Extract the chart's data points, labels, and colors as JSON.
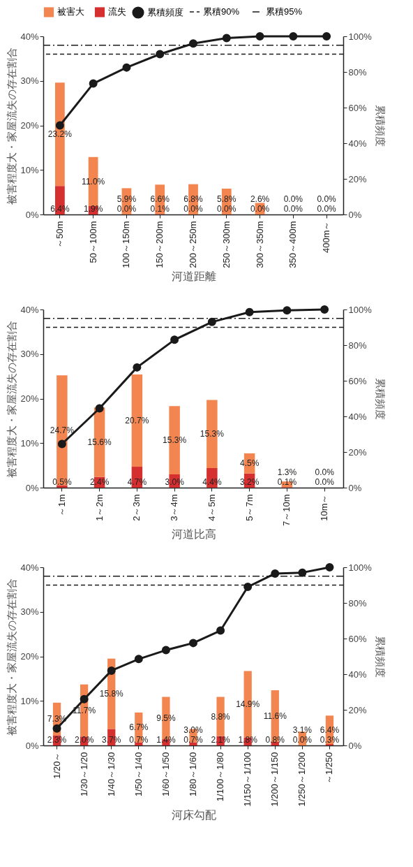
{
  "chart_data": [
    {
      "type": "bar",
      "stacked": true,
      "legend": "top",
      "marker": "circle",
      "xlabel": "河道距離",
      "ylabel": "被害程度大・家屋流失の存在割合",
      "y2label": "累積頻度",
      "categories": [
        "～50m",
        "50～100m",
        "100～150m",
        "150～200m",
        "200～250m",
        "250～300m",
        "300～350m",
        "350～400m",
        "400m～"
      ],
      "series": [
        {
          "name": "流失",
          "type": "bar",
          "color": "#d62f2f",
          "values": [
            6.4,
            1.9,
            0.0,
            0.1,
            0.0,
            0.0,
            0.0,
            0.0,
            0.0
          ],
          "value_labels": [
            "6.4%",
            "1.9%",
            "0.0%",
            "0.1%",
            "0.0%",
            "0.0%",
            "0.0%",
            "0.0%",
            "0.0%"
          ]
        },
        {
          "name": "被害大",
          "type": "bar",
          "color": "#f28550",
          "values": [
            23.2,
            11.0,
            5.9,
            6.6,
            6.8,
            5.8,
            2.6,
            0.0,
            0.0
          ],
          "value_labels": [
            "23.2%",
            "11.0%",
            "5.9%",
            "6.6%",
            "6.8%",
            "5.8%",
            "2.6%",
            "0.0%",
            "0.0%"
          ]
        },
        {
          "name": "累積頻度",
          "type": "line",
          "axis": "y2",
          "color": "#1a1a1a",
          "line_style": "solid",
          "values": [
            50,
            73.5,
            82.5,
            90,
            96,
            99,
            100,
            100,
            100
          ]
        }
      ],
      "ylim": [
        0,
        40
      ],
      "yticks": [
        {
          "value": 0,
          "label": "0%"
        },
        {
          "value": 10,
          "label": "10%"
        },
        {
          "value": 20,
          "label": "20%"
        },
        {
          "value": 30,
          "label": "30%"
        },
        {
          "value": 40,
          "label": "40%"
        }
      ],
      "y2lim": [
        0,
        100
      ],
      "y2ticks": [
        {
          "value": 0,
          "label": "0%"
        },
        {
          "value": 20,
          "label": "20%"
        },
        {
          "value": 40,
          "label": "40%"
        },
        {
          "value": 60,
          "label": "60%"
        },
        {
          "value": 80,
          "label": "80%"
        },
        {
          "value": 100,
          "label": "100%"
        }
      ],
      "ref_lines": [
        {
          "axis": "y2",
          "value": 90,
          "label": "累積90%",
          "line_style": "dashed",
          "color": "#1a1a1a"
        },
        {
          "axis": "y2",
          "value": 95,
          "label": "累積95%",
          "line_style": "dashdot",
          "color": "#1a1a1a"
        }
      ]
    },
    {
      "type": "bar",
      "stacked": true,
      "marker": "circle",
      "xlabel": "河道比高",
      "ylabel": "被害程度大・家屋流失の存在割合",
      "y2label": "累積頻度",
      "categories": [
        "～1m",
        "1～2m",
        "2～3m",
        "3～4m",
        "4～5m",
        "5～7m",
        "7～10m",
        "10m～"
      ],
      "series": [
        {
          "type": "bar",
          "color": "#d62f2f",
          "values": [
            0.5,
            2.4,
            4.7,
            3.0,
            4.4,
            3.2,
            0.1,
            0.0
          ],
          "value_labels": [
            "0.5%",
            "2.4%",
            "4.7%",
            "3.0%",
            "4.4%",
            "3.2%",
            "0.1%",
            "0.0%"
          ]
        },
        {
          "type": "bar",
          "color": "#f28550",
          "values": [
            24.7,
            15.6,
            20.7,
            15.3,
            15.3,
            4.5,
            1.3,
            0.0
          ],
          "value_labels": [
            "24.7%",
            "15.6%",
            "20.7%",
            "15.3%",
            "15.3%",
            "4.5%",
            "1.3%",
            "0.0%"
          ]
        },
        {
          "type": "line",
          "axis": "y2",
          "color": "#1a1a1a",
          "line_style": "solid",
          "values": [
            24.5,
            44.5,
            67.5,
            83,
            93,
            98.5,
            99.5,
            100
          ]
        }
      ],
      "ylim": [
        0,
        40
      ],
      "yticks": [
        {
          "value": 0,
          "label": "0%"
        },
        {
          "value": 10,
          "label": "10%"
        },
        {
          "value": 20,
          "label": "20%"
        },
        {
          "value": 30,
          "label": "30%"
        },
        {
          "value": 40,
          "label": "40%"
        }
      ],
      "y2lim": [
        0,
        100
      ],
      "y2ticks": [
        {
          "value": 0,
          "label": "0%"
        },
        {
          "value": 20,
          "label": "20%"
        },
        {
          "value": 40,
          "label": "40%"
        },
        {
          "value": 60,
          "label": "60%"
        },
        {
          "value": 80,
          "label": "80%"
        },
        {
          "value": 100,
          "label": "100%"
        }
      ],
      "ref_lines": [
        {
          "axis": "y2",
          "value": 90,
          "line_style": "dashed",
          "color": "#1a1a1a"
        },
        {
          "axis": "y2",
          "value": 95,
          "line_style": "dashdot",
          "color": "#1a1a1a"
        }
      ]
    },
    {
      "type": "bar",
      "stacked": true,
      "marker": "circle",
      "xlabel": "河床勾配",
      "ylabel": "被害程度大・家屋流失の存在割合",
      "y2label": "累積頻度",
      "categories": [
        "1/20～",
        "1/30～1/20",
        "1/40～1/30",
        "1/50～1/40",
        "1/60～1/50",
        "1/80～1/60",
        "1/100～1/80",
        "1/150～1/100",
        "1/200～1/150",
        "1/250～1/200",
        "～1/250"
      ],
      "series": [
        {
          "type": "bar",
          "color": "#d62f2f",
          "values": [
            2.3,
            2.0,
            3.7,
            0.7,
            1.4,
            0.7,
            2.1,
            1.8,
            0.8,
            0.0,
            0.3
          ],
          "value_labels": [
            "2.3%",
            "2.0%",
            "3.7%",
            "0.7%",
            "1.4%",
            "0.7%",
            "2.1%",
            "1.8%",
            "0.8%",
            "0.0%",
            "0.3%"
          ]
        },
        {
          "type": "bar",
          "color": "#f28550",
          "values": [
            7.3,
            11.7,
            15.8,
            6.7,
            9.5,
            3.0,
            8.8,
            14.9,
            11.6,
            3.1,
            6.4
          ],
          "value_labels": [
            "7.3%",
            "11.7%",
            "15.8%",
            "6.7%",
            "9.5%",
            "3.0%",
            "8.8%",
            "14.9%",
            "11.6%",
            "3.1%",
            "6.4%"
          ]
        },
        {
          "type": "line",
          "axis": "y2",
          "color": "#1a1a1a",
          "line_style": "solid",
          "values": [
            9.5,
            26,
            42,
            48.5,
            53.5,
            57.5,
            64.5,
            89,
            96.5,
            97,
            100
          ]
        }
      ],
      "ylim": [
        0,
        40
      ],
      "yticks": [
        {
          "value": 0,
          "label": "0%"
        },
        {
          "value": 10,
          "label": "10%"
        },
        {
          "value": 20,
          "label": "20%"
        },
        {
          "value": 30,
          "label": "30%"
        },
        {
          "value": 40,
          "label": "40%"
        }
      ],
      "y2lim": [
        0,
        100
      ],
      "y2ticks": [
        {
          "value": 0,
          "label": "0%"
        },
        {
          "value": 20,
          "label": "20%"
        },
        {
          "value": 40,
          "label": "40%"
        },
        {
          "value": 60,
          "label": "60%"
        },
        {
          "value": 80,
          "label": "80%"
        },
        {
          "value": 100,
          "label": "100%"
        }
      ],
      "ref_lines": [
        {
          "axis": "y2",
          "value": 90,
          "line_style": "dashed",
          "color": "#1a1a1a"
        },
        {
          "axis": "y2",
          "value": 95,
          "line_style": "dashdot",
          "color": "#1a1a1a"
        }
      ]
    }
  ]
}
